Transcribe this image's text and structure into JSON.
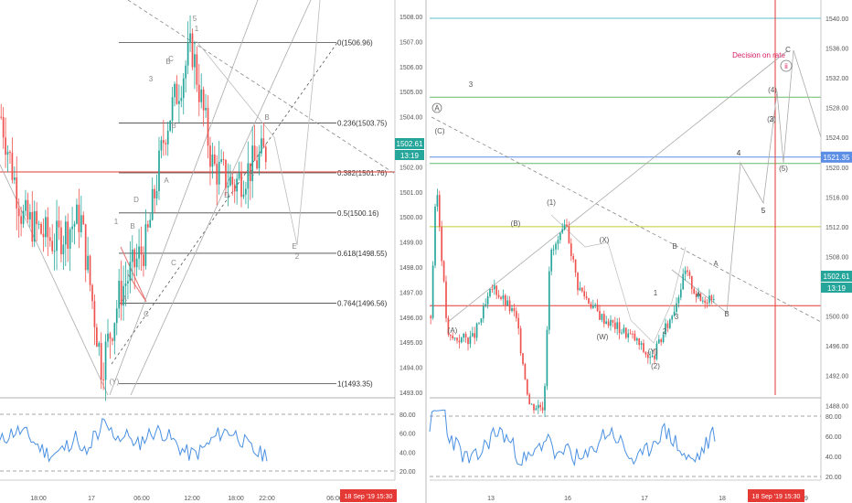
{
  "left_chart": {
    "price_axis": [
      "1508.00",
      "1507.00",
      "1506.00",
      "1505.00",
      "1504.00",
      "1503.00",
      "1502.00",
      "1501.00",
      "1500.00",
      "1499.00",
      "1498.00",
      "1497.00",
      "1496.00",
      "1495.00",
      "1494.00",
      "1493.00"
    ],
    "price_tag": {
      "value": "1502.61",
      "countdown": "13:19"
    },
    "time_axis": [
      "18:00",
      "17",
      "06:00",
      "12:00",
      "18:00",
      "22:00",
      "06:00"
    ],
    "date_badge": "18 Sep '19   15:30",
    "fib_levels": [
      {
        "label": "0(1506.96)",
        "price": 1506.96
      },
      {
        "label": "0.236(1503.75)",
        "price": 1503.75
      },
      {
        "label": "0.382(1501.76)",
        "price": 1501.76
      },
      {
        "label": "0.5(1500.16)",
        "price": 1500.16
      },
      {
        "label": "0.618(1498.55)",
        "price": 1498.55
      },
      {
        "label": "0.764(1496.56)",
        "price": 1496.56
      },
      {
        "label": "1(1493.35)",
        "price": 1493.35
      }
    ],
    "wave_labels": [
      "5",
      "1",
      "B",
      "3",
      "A",
      "C",
      "D",
      "1",
      "B",
      "A",
      "C",
      "(Y)",
      "D",
      "B",
      "A",
      "C",
      "E",
      "2",
      "B"
    ],
    "rsi_axis": [
      "80.00",
      "60.00",
      "40.00",
      "20.00"
    ],
    "colors": {
      "up": "#26a69a",
      "down": "#ef5350",
      "h_line": "#e53935",
      "rsi": "#4a90e2"
    }
  },
  "right_chart": {
    "price_axis": [
      "1540.00",
      "1536.00",
      "1532.00",
      "1528.00",
      "1524.00",
      "1520.00",
      "1516.00",
      "1512.00",
      "1508.00",
      "1504.00",
      "1500.00",
      "1496.00",
      "1492.00",
      "1488.00"
    ],
    "price_tag": {
      "value": "1502.61",
      "countdown": "13:19"
    },
    "blue_tag": "1521.35",
    "time_axis": [
      "13",
      "16",
      "17",
      "18",
      "19"
    ],
    "date_badge": "18 Sep '19   15:30",
    "annotation": "Decision on rate",
    "wave_labels": [
      "A",
      "(C)",
      "(A)",
      "(B)",
      "(1)",
      "(X)",
      "(W)",
      "(Y)",
      "(2)",
      "B",
      "A",
      "1",
      "2",
      "3",
      "4",
      "5",
      "(3)",
      "(4)",
      "(5)",
      "C",
      "ii",
      "3",
      "4",
      "5",
      "2",
      "B",
      "A"
    ],
    "rsi_axis": [
      "80.00",
      "60.00",
      "40.00",
      "20.00"
    ],
    "colors": {
      "teal": "#5bc0c8",
      "green": "#66bb6a",
      "olive": "#c0ca33",
      "blue": "#5c8ee6",
      "red": "#e53935",
      "pink": "#d81b60"
    }
  }
}
